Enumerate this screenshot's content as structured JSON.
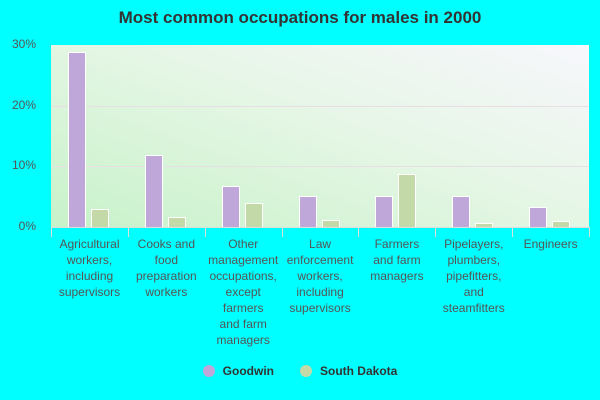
{
  "chart_data": {
    "type": "bar",
    "title": "Most common occupations for males in 2000",
    "xlabel": "",
    "ylabel": "",
    "ylim": [
      0,
      30
    ],
    "yticks": [
      "0%",
      "10%",
      "20%",
      "30%"
    ],
    "grid": true,
    "legend_position": "bottom",
    "categories": [
      "Agricultural workers, including supervisors",
      "Cooks and food preparation workers",
      "Other management occupations, except farmers and farm managers",
      "Law enforcement workers, including supervisors",
      "Farmers and farm managers",
      "Pipelayers, plumbers, pipefitters, and steamfitters",
      "Engineers"
    ],
    "series": [
      {
        "name": "Goodwin",
        "color": "#bfa8d9",
        "values": [
          28.8,
          11.9,
          6.8,
          5.1,
          5.1,
          5.1,
          3.3
        ]
      },
      {
        "name": "South Dakota",
        "color": "#c4d9a8",
        "values": [
          3.0,
          1.6,
          4.0,
          1.2,
          8.8,
          0.7,
          1.0
        ]
      }
    ]
  },
  "labels": [
    [
      "Agricultural",
      "workers,",
      "including",
      "supervisors"
    ],
    [
      "Cooks and",
      "food",
      "preparation",
      "workers"
    ],
    [
      "Other",
      "management",
      "occupations,",
      "except",
      "farmers",
      "and farm",
      "managers"
    ],
    [
      "Law",
      "enforcement",
      "workers,",
      "including",
      "supervisors"
    ],
    [
      "Farmers",
      "and farm",
      "managers"
    ],
    [
      "Pipelayers,",
      "plumbers,",
      "pipefitters,",
      "and",
      "steamfitters"
    ],
    [
      "Engineers"
    ]
  ]
}
